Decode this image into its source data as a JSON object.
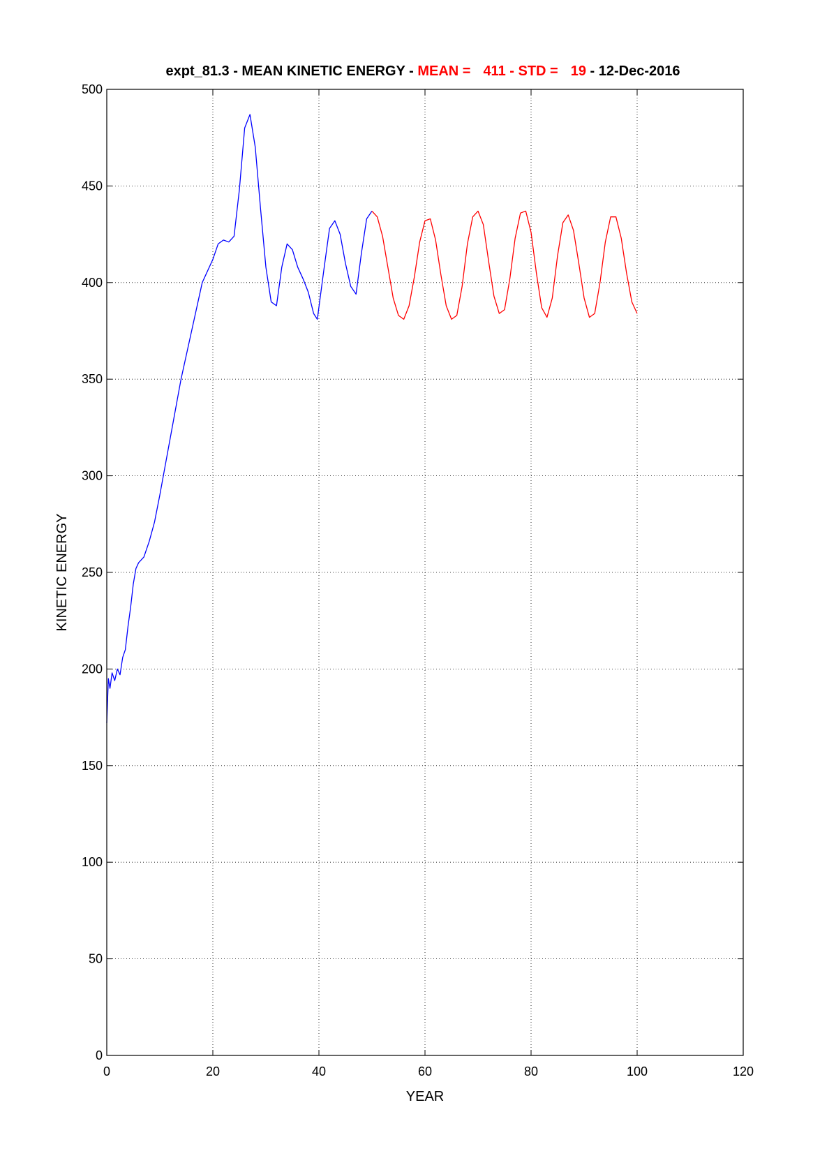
{
  "chart_data": {
    "type": "line",
    "title": {
      "prefix": "expt_81.3 - MEAN KINETIC ENERGY - ",
      "mean_label": "MEAN =",
      "mean_value": "411",
      "sep1": " - ",
      "std_label": "STD =",
      "std_value": "19",
      "suffix": " - 12-Dec-2016"
    },
    "xlabel": "YEAR",
    "ylabel": "KINETIC ENERGY",
    "xlim": [
      0,
      120
    ],
    "ylim": [
      0,
      500
    ],
    "xticks": [
      0,
      20,
      40,
      60,
      80,
      100,
      120
    ],
    "yticks": [
      0,
      50,
      100,
      150,
      200,
      250,
      300,
      350,
      400,
      450,
      500
    ],
    "grid": true,
    "colors": {
      "highlight": "#ff0000",
      "series_early": "#0000ff",
      "series_late": "#ff0000",
      "text": "#000000"
    },
    "series": [
      {
        "color": "#0000ff",
        "x": [
          0,
          0.3,
          0.6,
          1.0,
          1.5,
          2.0,
          2.5,
          3.0,
          3.5,
          4.0,
          4.5,
          5.0,
          5.5,
          6.0,
          7.0,
          8.0,
          9.0,
          10.0,
          12.0,
          14.0,
          16.0,
          18.0,
          20.0,
          21.0,
          22.0,
          23.0,
          24.0,
          25.0,
          26.0,
          27.0,
          28.0,
          29.0,
          30.0,
          31.0,
          32.0,
          33.0,
          34.0,
          35.0,
          36.0,
          37.0,
          38.0,
          39.0,
          39.7,
          41.0,
          42.0,
          43.0,
          44.0,
          45.0,
          46.0,
          47.0,
          48.0,
          49.0,
          50.0
        ],
        "y": [
          172,
          195,
          190,
          198,
          194,
          200,
          197,
          206,
          210,
          222,
          232,
          244,
          252,
          255,
          258,
          266,
          276,
          290,
          320,
          350,
          375,
          400,
          412,
          420,
          422,
          421,
          424,
          448,
          480,
          487,
          470,
          438,
          408,
          390,
          388,
          408,
          420,
          417,
          408,
          402,
          395,
          384,
          381,
          408,
          428,
          432,
          425,
          410,
          398,
          394,
          415,
          433,
          437
        ]
      },
      {
        "color": "#ff0000",
        "x": [
          50,
          51,
          52,
          53,
          54,
          55,
          56,
          57,
          58,
          59,
          60,
          61,
          62,
          63,
          64,
          65,
          66,
          67,
          68,
          69,
          70,
          71,
          72,
          73,
          74,
          75,
          76,
          77,
          78,
          79,
          80,
          81,
          82,
          83,
          84,
          85,
          86,
          87,
          88,
          89,
          90,
          91,
          92,
          93,
          94,
          95,
          96,
          97,
          98,
          99,
          100
        ],
        "y": [
          437,
          434,
          424,
          408,
          392,
          383,
          381,
          388,
          403,
          421,
          432,
          433,
          422,
          404,
          388,
          381,
          383,
          398,
          420,
          434,
          437,
          430,
          411,
          393,
          384,
          386,
          402,
          423,
          436,
          437,
          426,
          405,
          387,
          382,
          392,
          414,
          431,
          435,
          427,
          410,
          392,
          382,
          384,
          400,
          421,
          434,
          434,
          423,
          405,
          390,
          384
        ]
      }
    ]
  }
}
